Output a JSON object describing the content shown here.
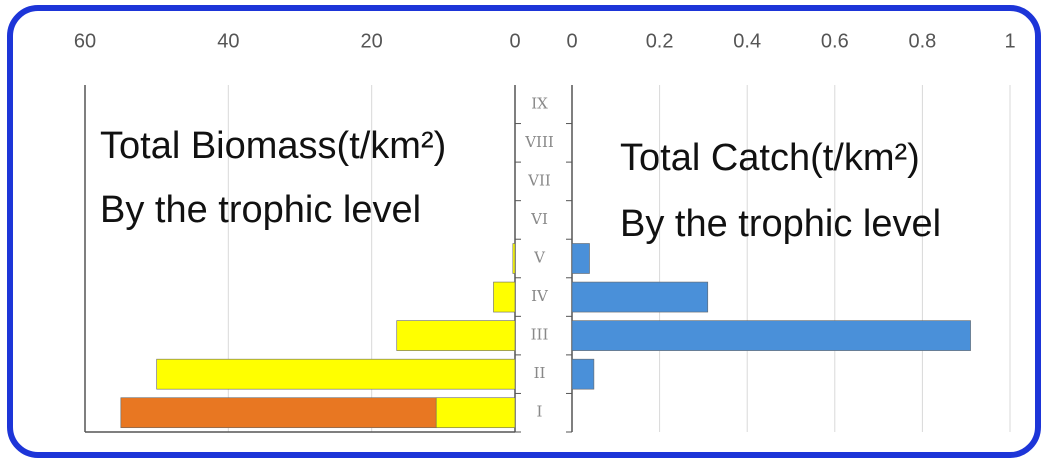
{
  "chart_data": {
    "type": "bar",
    "orientation": "horizontal",
    "categories": [
      "I",
      "II",
      "III",
      "IV",
      "V",
      "VI",
      "VII",
      "VIII",
      "IX"
    ],
    "series": [
      {
        "color": "#ffff00",
        "values": [
          11,
          50,
          16.5,
          3,
          0.3,
          0,
          0,
          0,
          0
        ]
      },
      {
        "color": "#e87722",
        "values": [
          44,
          null,
          null,
          null,
          null,
          null,
          null,
          null,
          null
        ]
      },
      {
        "color": "#4a90d9",
        "axis": "x2",
        "values": [
          null,
          0.05,
          0.91,
          0.31,
          0.04,
          null,
          null,
          null,
          null
        ]
      }
    ],
    "xlim": [
      60,
      0
    ],
    "xticks": [
      60,
      40,
      20,
      0
    ],
    "x2lim": [
      0,
      1
    ],
    "x2ticks": [
      0,
      0.2,
      0.4,
      0.6,
      0.8,
      1
    ],
    "grid": true,
    "annotations": [
      "Total Biomass(t/km²)",
      "By the trophic level",
      "Total Catch(t/km²)",
      "By the trophic level"
    ]
  }
}
